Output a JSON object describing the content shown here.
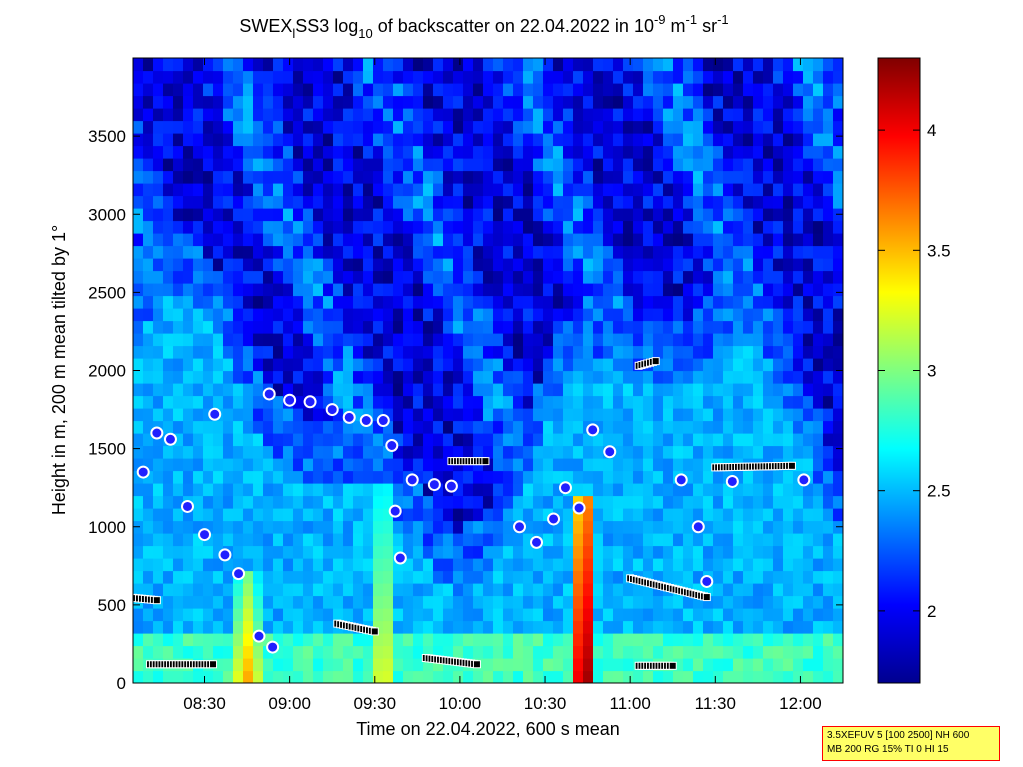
{
  "chart_data": {
    "type": "heatmap",
    "title": "SWEX_lSS3 log10 of backscatter on 22.04.2022 in 10-9 m-1 sr-1",
    "title_parts": {
      "a": "SWEX",
      "a_sub": "l",
      "b": "SS3 log",
      "b_sub": "10",
      "c": " of backscatter on 22.04.2022 in 10",
      "c_sup": "-9",
      "d": " m",
      "d_sup": "-1",
      "e": " sr",
      "e_sup": "-1"
    },
    "xlabel": "Time on 22.04.2022, 600 s mean",
    "ylabel": "Height in m, 200 m mean tilted by 1°",
    "x_range_hours": [
      8.08,
      12.25
    ],
    "x_ticks": [
      {
        "value": 8.5,
        "label": "08:30"
      },
      {
        "value": 9.0,
        "label": "09:00"
      },
      {
        "value": 9.5,
        "label": "09:30"
      },
      {
        "value": 10.0,
        "label": "10:00"
      },
      {
        "value": 10.5,
        "label": "10:30"
      },
      {
        "value": 11.0,
        "label": "11:00"
      },
      {
        "value": 11.5,
        "label": "11:30"
      },
      {
        "value": 12.0,
        "label": "12:00"
      }
    ],
    "ylim": [
      0,
      4000
    ],
    "y_ticks": [
      0,
      500,
      1000,
      1500,
      2000,
      2500,
      3000,
      3500
    ],
    "colorbar": {
      "colormap": "jet",
      "range": [
        1.7,
        4.3
      ],
      "ticks": [
        "2",
        "2.5",
        "3",
        "3.5",
        "4"
      ],
      "tick_values": [
        2,
        2.5,
        3,
        3.5,
        4
      ]
    },
    "aerosol_bursts": [
      {
        "t": 10.74,
        "h_top": 1200,
        "strength": 4.3
      },
      {
        "t": 8.75,
        "h_top": 700,
        "strength": 3.6
      },
      {
        "t": 9.55,
        "h_top": 1300,
        "strength": 3.4
      }
    ],
    "layer_markers": {
      "cloud_base_circles": [
        {
          "t": 8.14,
          "h": 1350
        },
        {
          "t": 8.22,
          "h": 1600
        },
        {
          "t": 8.3,
          "h": 1560
        },
        {
          "t": 8.4,
          "h": 1130
        },
        {
          "t": 8.5,
          "h": 950
        },
        {
          "t": 8.56,
          "h": 1720
        },
        {
          "t": 8.62,
          "h": 820
        },
        {
          "t": 8.7,
          "h": 700
        },
        {
          "t": 8.82,
          "h": 300
        },
        {
          "t": 8.9,
          "h": 230
        },
        {
          "t": 8.88,
          "h": 1850
        },
        {
          "t": 9.0,
          "h": 1810
        },
        {
          "t": 9.12,
          "h": 1800
        },
        {
          "t": 9.25,
          "h": 1750
        },
        {
          "t": 9.35,
          "h": 1700
        },
        {
          "t": 9.45,
          "h": 1680
        },
        {
          "t": 9.55,
          "h": 1680
        },
        {
          "t": 9.6,
          "h": 1520
        },
        {
          "t": 9.62,
          "h": 1100
        },
        {
          "t": 9.65,
          "h": 800
        },
        {
          "t": 9.72,
          "h": 1300
        },
        {
          "t": 9.85,
          "h": 1270
        },
        {
          "t": 9.95,
          "h": 1260
        },
        {
          "t": 10.35,
          "h": 1000
        },
        {
          "t": 10.45,
          "h": 900
        },
        {
          "t": 10.55,
          "h": 1050
        },
        {
          "t": 10.62,
          "h": 1250
        },
        {
          "t": 10.7,
          "h": 1120
        },
        {
          "t": 10.78,
          "h": 1620
        },
        {
          "t": 10.88,
          "h": 1480
        },
        {
          "t": 11.3,
          "h": 1300
        },
        {
          "t": 11.4,
          "h": 1000
        },
        {
          "t": 11.45,
          "h": 650
        },
        {
          "t": 11.6,
          "h": 1290
        },
        {
          "t": 12.02,
          "h": 1300
        }
      ],
      "black_square_tracks": [
        {
          "t": [
            8.08,
            8.22
          ],
          "h": [
            545,
            530
          ]
        },
        {
          "t": [
            8.18,
            8.55
          ],
          "h": [
            120,
            120
          ]
        },
        {
          "t": [
            9.28,
            9.5
          ],
          "h": [
            380,
            330
          ]
        },
        {
          "t": [
            9.8,
            10.1
          ],
          "h": [
            160,
            120
          ]
        },
        {
          "t": [
            9.95,
            10.15
          ],
          "h": [
            1420,
            1420
          ]
        },
        {
          "t": [
            11.0,
            11.45
          ],
          "h": [
            670,
            550
          ]
        },
        {
          "t": [
            11.5,
            11.95
          ],
          "h": [
            1380,
            1390
          ]
        },
        {
          "t": [
            11.05,
            11.25
          ],
          "h": [
            110,
            110
          ]
        },
        {
          "t": [
            11.05,
            11.15
          ],
          "h": [
            2030,
            2060
          ]
        }
      ]
    }
  },
  "info_box": {
    "line1": "3.5XEFUV 5 [100 2500] NH 600",
    "line2": "MB 200 RG 15% TI 0 HI 15"
  }
}
